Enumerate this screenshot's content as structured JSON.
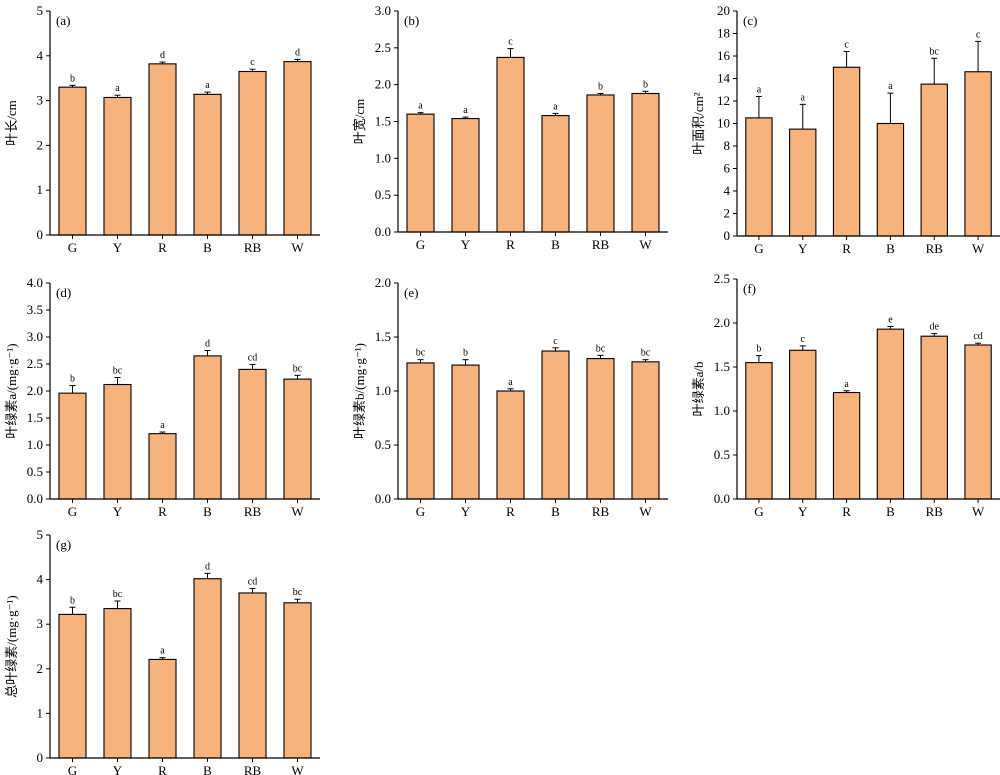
{
  "colors": {
    "bar_fill": "#F8B27C",
    "bar_stroke": "#000000",
    "axis": "#000000"
  },
  "chart_data": [
    {
      "type": "bar",
      "panel_label": "(a)",
      "categories": [
        "G",
        "Y",
        "R",
        "B",
        "RB",
        "W"
      ],
      "values": [
        3.3,
        3.07,
        3.82,
        3.14,
        3.65,
        3.87
      ],
      "errors": [
        0.04,
        0.05,
        0.04,
        0.05,
        0.05,
        0.05
      ],
      "significance": [
        "b",
        "a",
        "d",
        "a",
        "c",
        "d"
      ],
      "ylabel": "叶长/cm",
      "ylim": [
        0,
        5
      ],
      "yticks": [
        0,
        1,
        2,
        3,
        4,
        5
      ],
      "ytick_labels": [
        "0",
        "1",
        "2",
        "3",
        "4",
        "5"
      ]
    },
    {
      "type": "bar",
      "panel_label": "(b)",
      "categories": [
        "G",
        "Y",
        "R",
        "B",
        "RB",
        "W"
      ],
      "values": [
        1.6,
        1.54,
        2.37,
        1.58,
        1.86,
        1.88
      ],
      "errors": [
        0.02,
        0.02,
        0.12,
        0.03,
        0.02,
        0.03
      ],
      "significance": [
        "a",
        "a",
        "c",
        "a",
        "b",
        "b"
      ],
      "ylabel": "叶宽/cm",
      "ylim": [
        0,
        3.0
      ],
      "yticks": [
        0,
        0.5,
        1,
        1.5,
        2,
        2.5,
        3
      ],
      "ytick_labels": [
        "0.0",
        "0.5",
        "1.0",
        "1.5",
        "2.0",
        "2.5",
        "3.0"
      ]
    },
    {
      "type": "bar",
      "panel_label": "(c)",
      "categories": [
        "G",
        "Y",
        "R",
        "B",
        "RB",
        "W"
      ],
      "values": [
        10.5,
        9.5,
        15.0,
        10.0,
        13.5,
        14.6
      ],
      "errors": [
        1.9,
        2.2,
        1.4,
        2.7,
        2.3,
        2.7
      ],
      "significance": [
        "a",
        "a",
        "c",
        "a",
        "bc",
        "c"
      ],
      "ylabel": "叶面积/cm²",
      "ylim": [
        0,
        20
      ],
      "yticks": [
        0,
        2,
        4,
        6,
        8,
        10,
        12,
        14,
        16,
        18,
        20
      ],
      "ytick_labels": [
        "0",
        "2",
        "4",
        "6",
        "8",
        "10",
        "12",
        "14",
        "16",
        "18",
        "20"
      ]
    },
    {
      "type": "bar",
      "panel_label": "(d)",
      "categories": [
        "G",
        "Y",
        "R",
        "B",
        "RB",
        "W"
      ],
      "values": [
        1.96,
        2.12,
        1.21,
        2.65,
        2.4,
        2.22
      ],
      "errors": [
        0.14,
        0.13,
        0.03,
        0.1,
        0.09,
        0.07
      ],
      "significance": [
        "b",
        "bc",
        "a",
        "d",
        "cd",
        "bc"
      ],
      "ylabel": "叶绿素a/(mg·g⁻¹)",
      "ylim": [
        0,
        4.0
      ],
      "yticks": [
        0,
        0.5,
        1,
        1.5,
        2,
        2.5,
        3,
        3.5,
        4
      ],
      "ytick_labels": [
        "0.0",
        "0.5",
        "1.0",
        "1.5",
        "2.0",
        "2.5",
        "3.0",
        "3.5",
        "4.0"
      ]
    },
    {
      "type": "bar",
      "panel_label": "(e)",
      "categories": [
        "G",
        "Y",
        "R",
        "B",
        "RB",
        "W"
      ],
      "values": [
        1.26,
        1.24,
        1.0,
        1.37,
        1.3,
        1.27
      ],
      "errors": [
        0.03,
        0.05,
        0.02,
        0.03,
        0.03,
        0.02
      ],
      "significance": [
        "bc",
        "b",
        "a",
        "c",
        "bc",
        "bc"
      ],
      "ylabel": "叶绿素b/(mg·g⁻¹)",
      "ylim": [
        0,
        2.0
      ],
      "yticks": [
        0,
        0.5,
        1,
        1.5,
        2
      ],
      "ytick_labels": [
        "0.0",
        "0.5",
        "1.0",
        "1.5",
        "2.0"
      ]
    },
    {
      "type": "bar",
      "panel_label": "(f)",
      "categories": [
        "G",
        "Y",
        "R",
        "B",
        "RB",
        "W"
      ],
      "values": [
        1.55,
        1.69,
        1.21,
        1.93,
        1.85,
        1.75
      ],
      "errors": [
        0.08,
        0.05,
        0.02,
        0.03,
        0.03,
        0.02
      ],
      "significance": [
        "b",
        "c",
        "a",
        "e",
        "de",
        "cd"
      ],
      "ylabel": "叶绿素a/b",
      "ylim": [
        0,
        2.5
      ],
      "yticks": [
        0,
        0.5,
        1,
        1.5,
        2,
        2.5
      ],
      "ytick_labels": [
        "0.0",
        "0.5",
        "1.0",
        "1.5",
        "2.0",
        "2.5"
      ]
    },
    {
      "type": "bar",
      "panel_label": "(g)",
      "categories": [
        "G",
        "Y",
        "R",
        "B",
        "RB",
        "W"
      ],
      "values": [
        3.22,
        3.35,
        2.21,
        4.02,
        3.7,
        3.48
      ],
      "errors": [
        0.16,
        0.17,
        0.04,
        0.12,
        0.1,
        0.08
      ],
      "significance": [
        "b",
        "bc",
        "a",
        "d",
        "cd",
        "bc"
      ],
      "ylabel": "总叶绿素/(mg·g⁻¹)",
      "ylim": [
        0,
        5
      ],
      "yticks": [
        0,
        1,
        2,
        3,
        4,
        5
      ],
      "ytick_labels": [
        "0",
        "1",
        "2",
        "3",
        "4",
        "5"
      ]
    }
  ]
}
